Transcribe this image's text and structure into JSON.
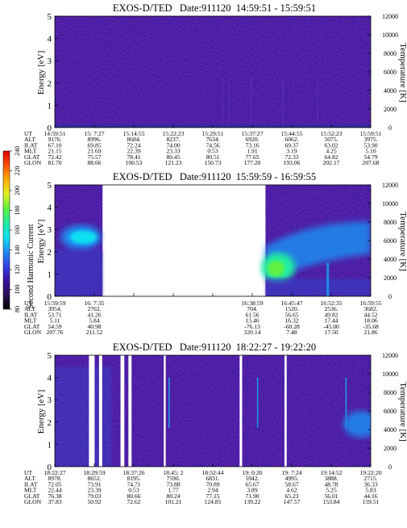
{
  "colorbar": {
    "label": "Second Harmonic Current",
    "ticks": [
      "80",
      "100",
      "120",
      "140",
      "160",
      "180",
      "200",
      "220",
      "240"
    ],
    "stops": [
      "#000000",
      "#2b1055",
      "#3a10a0",
      "#3440e8",
      "#1f8cf0",
      "#10e0f0",
      "#20f0a0",
      "#60f040",
      "#e0f020",
      "#ffb000",
      "#ff5000",
      "#e00000"
    ]
  },
  "chart_data": [
    {
      "type": "heatmap",
      "title": "EXOS-D/TED   Date:911120  14:59:51 - 15:59:51",
      "ylabel": "Energy [eV]",
      "y2label": "Temperature [K]",
      "ylim": [
        0,
        5
      ],
      "yticks": [
        "0",
        "1",
        "2",
        "3",
        "4",
        "5"
      ],
      "y2lim": [
        0,
        12000
      ],
      "y2ticks": [
        "0",
        "2000",
        "4000",
        "6000",
        "8000",
        "10000",
        "12000"
      ],
      "row_labels": [
        "UT",
        "ALT",
        "ILAT",
        "MLT",
        "GLAT",
        "GLON"
      ],
      "columns": [
        [
          "14:59:51",
          "9176.",
          "67.10",
          "21.15",
          "72.42",
          "81.70"
        ],
        [
          "15: 7:27",
          "8996.",
          "69.85",
          "21.69",
          "75.57",
          "88.66"
        ],
        [
          "15:14:55",
          "8684.",
          "72.24",
          "22.39",
          "78.41",
          "100.53"
        ],
        [
          "15:22:23",
          "8237.",
          "74.00",
          "23.33",
          "80.45",
          "121.23"
        ],
        [
          "15:29:51",
          "7634.",
          "74.56",
          "0.53",
          "80.51",
          "150.73"
        ],
        [
          "15:37:27",
          "6920.",
          "73.16",
          "1.91",
          "77.65",
          "177.20"
        ],
        [
          "15:44:55",
          "6062.",
          "69.37",
          "3.19",
          "72.33",
          "193.06"
        ],
        [
          "15:52:23",
          "5075.",
          "63.02",
          "4.25",
          "64.82",
          "202.17"
        ],
        [
          "15:59:51",
          "3975.",
          "53.90",
          "5.10",
          "54.79",
          "207.68"
        ]
      ],
      "segments": [
        {
          "x0": 0,
          "x1": 1
        }
      ],
      "gaps": []
    },
    {
      "type": "heatmap",
      "title": "EXOS-D/TED   Date:911120  15:59:59 - 16:59:55",
      "ylabel": "Energy [eV]",
      "y2label": "Temperature [K]",
      "ylim": [
        0,
        5
      ],
      "yticks": [
        "0",
        "1",
        "2",
        "3",
        "4",
        "5"
      ],
      "y2lim": [
        0,
        12000
      ],
      "y2ticks": [
        "0",
        "2000",
        "4000",
        "6000",
        "8000",
        "10000",
        "12000"
      ],
      "row_labels": [
        "UT",
        "ALT",
        "ILAT",
        "MLT",
        "GLAT",
        "GLON"
      ],
      "columns": [
        [
          "15:59:59",
          "3954.",
          "53.71",
          "5.11",
          "54.59",
          "207.76"
        ],
        [
          "16: 7:35",
          "2762.",
          "41.26",
          "5.84",
          "40.98",
          "211.52"
        ],
        [
          "",
          "",
          "",
          "",
          "",
          ""
        ],
        [
          "",
          "",
          "",
          "",
          "",
          ""
        ],
        [
          "",
          "",
          "",
          "",
          "",
          ""
        ],
        [
          "16:38:59",
          "704.",
          "61.56",
          "13.46",
          "-76.13",
          "320.14"
        ],
        [
          "16:45:47",
          "1520.",
          "56.65",
          "16.32",
          "-60.28",
          "7.48"
        ],
        [
          "16:52:35",
          "2536.",
          "49.82",
          "17.44",
          "-45.00",
          "17.50"
        ],
        [
          "16:59:55",
          "3682.",
          "44.52",
          "18.06",
          "-35.68",
          "21.86"
        ]
      ],
      "segments": [
        {
          "x0": 0,
          "x1": 0.151
        },
        {
          "x0": 0.667,
          "x1": 1
        }
      ],
      "gaps": []
    },
    {
      "type": "heatmap",
      "title": "EXOS-D/TED   Date:911120  18:22:27 - 19:22:20",
      "ylabel": "Energy [eV]",
      "y2label": "Temperature [K]",
      "ylim": [
        0,
        5
      ],
      "yticks": [
        "0",
        "1",
        "2",
        "3",
        "4",
        "5"
      ],
      "y2lim": [
        0,
        12000
      ],
      "y2ticks": [
        "0",
        "2000",
        "4000",
        "6000",
        "8000",
        "10000",
        "12000"
      ],
      "row_labels": [
        "UT",
        "ALT",
        "ILAT",
        "MLT",
        "GLAT",
        "GLON"
      ],
      "columns": [
        [
          "18:22:27",
          "8978.",
          "72.05",
          "22.44",
          "76.38",
          "37.83"
        ],
        [
          "18:29:59",
          "8652.",
          "73.91",
          "23.39",
          "79.03",
          "50.92"
        ],
        [
          "18:37:26",
          "8195.",
          "74.71",
          "0.53",
          "80.66",
          "72.62"
        ],
        [
          "18:45: 2",
          "7590.",
          "73.88",
          "1.77",
          "80.24",
          "101.21"
        ],
        [
          "18:52:44",
          "6831.",
          "70.89",
          "2.94",
          "77.15",
          "124.85"
        ],
        [
          "19: 0:20",
          "5942.",
          "65.67",
          "3.89",
          "71.90",
          "139.22"
        ],
        [
          "19: 7:24",
          "4995.",
          "58.67",
          "4.62",
          "65.23",
          "147.57"
        ],
        [
          "19:14:52",
          "3888.",
          "48.78",
          "5.25",
          "56.01",
          "153.84"
        ],
        [
          "19:22:20",
          "2715.",
          "36.33",
          "5.83",
          "44.16",
          "159.51"
        ]
      ],
      "segments": [
        {
          "x0": 0,
          "x1": 1
        }
      ],
      "gaps": [
        {
          "x0": 0.108,
          "x1": 0.126
        },
        {
          "x0": 0.14,
          "x1": 0.15
        },
        {
          "x0": 0.208,
          "x1": 0.22
        },
        {
          "x0": 0.233,
          "x1": 0.243
        },
        {
          "x0": 0.345,
          "x1": 0.351
        },
        {
          "x0": 0.585,
          "x1": 0.593
        },
        {
          "x0": 0.727,
          "x1": 0.734
        }
      ]
    }
  ]
}
